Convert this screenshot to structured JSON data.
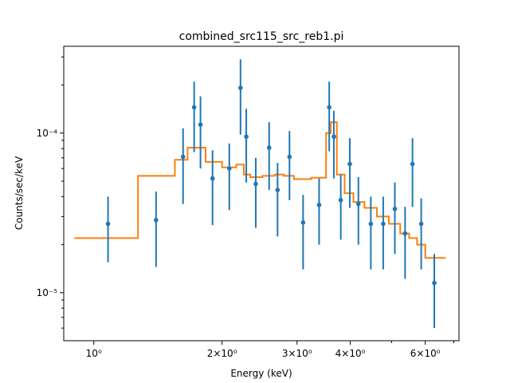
{
  "chart_data": {
    "type": "scatter",
    "title": "combined_src115_src_reb1.pi",
    "xlabel": "Energy (keV)",
    "ylabel": "Counts/sec/keV",
    "xscale": "log",
    "yscale": "log",
    "xlim": [
      0.85,
      7.2
    ],
    "ylim": [
      5e-06,
      0.00035
    ],
    "grid": false,
    "colors": {
      "data": "#1f77b4",
      "model": "#ff7f0e"
    },
    "x_major_ticks": [
      {
        "value": 1,
        "label": "10⁰"
      },
      {
        "value": 2,
        "label": "2×10⁰"
      },
      {
        "value": 3,
        "label": "3×10⁰"
      },
      {
        "value": 4,
        "label": "4×10⁰"
      },
      {
        "value": 6,
        "label": "6×10⁰"
      }
    ],
    "x_minor_ticks": [
      5,
      7
    ],
    "y_major_ticks": [
      {
        "value": 1e-05,
        "label": "10⁻⁵"
      },
      {
        "value": 0.0001,
        "label": "10⁻⁴"
      }
    ],
    "y_minor_ticks": [
      6e-06,
      7e-06,
      8e-06,
      9e-06,
      2e-05,
      3e-05,
      4e-05,
      5e-05,
      6e-05,
      7e-05,
      8e-05,
      9e-05,
      0.0002,
      0.0003
    ],
    "series": [
      {
        "kind": "errorbar",
        "points": [
          {
            "x": 1.08,
            "y": 2.7e-05,
            "ylo": 1.55e-05,
            "yhi": 4e-05
          },
          {
            "x": 1.4,
            "y": 2.85e-05,
            "ylo": 1.45e-05,
            "yhi": 4.3e-05
          },
          {
            "x": 1.62,
            "y": 7.1e-05,
            "ylo": 3.6e-05,
            "yhi": 0.000107
          },
          {
            "x": 1.72,
            "y": 0.000145,
            "ylo": 7.6e-05,
            "yhi": 0.00021
          },
          {
            "x": 1.78,
            "y": 0.000113,
            "ylo": 6e-05,
            "yhi": 0.00017
          },
          {
            "x": 1.9,
            "y": 5.2e-05,
            "ylo": 2.65e-05,
            "yhi": 7.8e-05
          },
          {
            "x": 2.08,
            "y": 6e-05,
            "ylo": 3.3e-05,
            "yhi": 8.6e-05
          },
          {
            "x": 2.21,
            "y": 0.000192,
            "ylo": 9.8e-05,
            "yhi": 0.00029
          },
          {
            "x": 2.28,
            "y": 9.5e-05,
            "ylo": 4.9e-05,
            "yhi": 0.000142
          },
          {
            "x": 2.4,
            "y": 4.8e-05,
            "ylo": 2.55e-05,
            "yhi": 7e-05
          },
          {
            "x": 2.58,
            "y": 8.1e-05,
            "ylo": 4.4e-05,
            "yhi": 0.000117
          },
          {
            "x": 2.7,
            "y": 4.4e-05,
            "ylo": 2.25e-05,
            "yhi": 6.5e-05
          },
          {
            "x": 2.88,
            "y": 7.1e-05,
            "ylo": 3.8e-05,
            "yhi": 0.000103
          },
          {
            "x": 3.1,
            "y": 2.75e-05,
            "ylo": 1.4e-05,
            "yhi": 4.1e-05
          },
          {
            "x": 3.38,
            "y": 3.55e-05,
            "ylo": 2e-05,
            "yhi": 5.2e-05
          },
          {
            "x": 3.57,
            "y": 0.000145,
            "ylo": 7.7e-05,
            "yhi": 0.00021
          },
          {
            "x": 3.66,
            "y": 9.5e-05,
            "ylo": 5.2e-05,
            "yhi": 0.000138
          },
          {
            "x": 3.8,
            "y": 3.8e-05,
            "ylo": 2.15e-05,
            "yhi": 5.5e-05
          },
          {
            "x": 3.99,
            "y": 6.4e-05,
            "ylo": 3.4e-05,
            "yhi": 9.3e-05
          },
          {
            "x": 4.18,
            "y": 3.6e-05,
            "ylo": 2e-05,
            "yhi": 5.3e-05
          },
          {
            "x": 4.47,
            "y": 2.7e-05,
            "ylo": 1.4e-05,
            "yhi": 4e-05
          },
          {
            "x": 4.78,
            "y": 2.7e-05,
            "ylo": 1.4e-05,
            "yhi": 4e-05
          },
          {
            "x": 5.09,
            "y": 3.35e-05,
            "ylo": 1.75e-05,
            "yhi": 4.9e-05
          },
          {
            "x": 5.38,
            "y": 2.35e-05,
            "ylo": 1.22e-05,
            "yhi": 3.45e-05
          },
          {
            "x": 5.6,
            "y": 6.4e-05,
            "ylo": 3.45e-05,
            "yhi": 9.3e-05
          },
          {
            "x": 5.87,
            "y": 2.7e-05,
            "ylo": 1.4e-05,
            "yhi": 3.9e-05
          },
          {
            "x": 6.3,
            "y": 1.15e-05,
            "ylo": 6e-06,
            "yhi": 1.75e-05
          }
        ]
      },
      {
        "kind": "step",
        "points": [
          [
            0.9,
            2.2e-05
          ],
          [
            1.27,
            2.2e-05
          ],
          [
            1.27,
            5.4e-05
          ],
          [
            1.55,
            5.4e-05
          ],
          [
            1.55,
            6.8e-05
          ],
          [
            1.66,
            6.8e-05
          ],
          [
            1.66,
            8.1e-05
          ],
          [
            1.83,
            8.1e-05
          ],
          [
            1.83,
            6.6e-05
          ],
          [
            2.0,
            6.6e-05
          ],
          [
            2.0,
            6.1e-05
          ],
          [
            2.16,
            6.1e-05
          ],
          [
            2.16,
            6.35e-05
          ],
          [
            2.25,
            6.35e-05
          ],
          [
            2.25,
            5.5e-05
          ],
          [
            2.33,
            5.5e-05
          ],
          [
            2.33,
            5.3e-05
          ],
          [
            2.49,
            5.3e-05
          ],
          [
            2.49,
            5.4e-05
          ],
          [
            2.66,
            5.4e-05
          ],
          [
            2.66,
            5.5e-05
          ],
          [
            2.79,
            5.5e-05
          ],
          [
            2.79,
            5.4e-05
          ],
          [
            2.95,
            5.4e-05
          ],
          [
            2.95,
            5.15e-05
          ],
          [
            3.24,
            5.15e-05
          ],
          [
            3.24,
            5.25e-05
          ],
          [
            3.51,
            5.25e-05
          ],
          [
            3.51,
            0.0001
          ],
          [
            3.6,
            0.0001
          ],
          [
            3.6,
            0.000117
          ],
          [
            3.72,
            0.000117
          ],
          [
            3.72,
            5.5e-05
          ],
          [
            3.88,
            5.5e-05
          ],
          [
            3.88,
            4.2e-05
          ],
          [
            4.07,
            4.2e-05
          ],
          [
            4.07,
            3.7e-05
          ],
          [
            4.32,
            3.7e-05
          ],
          [
            4.32,
            3.4e-05
          ],
          [
            4.62,
            3.4e-05
          ],
          [
            4.62,
            3e-05
          ],
          [
            4.93,
            3e-05
          ],
          [
            4.93,
            2.7e-05
          ],
          [
            5.24,
            2.7e-05
          ],
          [
            5.24,
            2.35e-05
          ],
          [
            5.5,
            2.35e-05
          ],
          [
            5.5,
            2.2e-05
          ],
          [
            5.74,
            2.2e-05
          ],
          [
            5.74,
            2e-05
          ],
          [
            6.0,
            2e-05
          ],
          [
            6.0,
            1.65e-05
          ],
          [
            6.7,
            1.65e-05
          ]
        ]
      }
    ]
  }
}
